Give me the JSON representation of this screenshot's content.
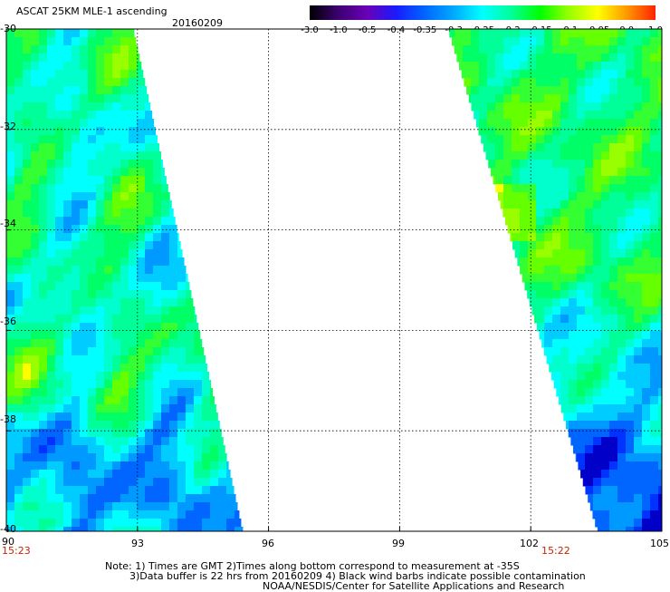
{
  "header": {
    "product": "ASCAT 25KM MLE-1 ascending",
    "date": "20160209"
  },
  "colorbar": {
    "labels": [
      "-3.0",
      "-1.0",
      "-0.5",
      "-0.4",
      "-0.35",
      "-0.3",
      "-0.25",
      "-0.2",
      "-0.15",
      "-0.1",
      "-0.05",
      "0.0",
      "1.0"
    ],
    "colors": [
      "#000000",
      "#3c0070",
      "#6a00b8",
      "#1a1aff",
      "#0066ff",
      "#00aaff",
      "#00ffff",
      "#00ff99",
      "#00ff00",
      "#99ff00",
      "#ffff00",
      "#ff9900",
      "#ff2200"
    ]
  },
  "axes": {
    "x_ticks": [
      "90",
      "93",
      "96",
      "99",
      "102",
      "105"
    ],
    "y_ticks": [
      "-30",
      "-32",
      "-34",
      "-36",
      "-38",
      "-40"
    ],
    "lon_range": [
      90,
      105
    ],
    "lat_range": [
      -30,
      -40
    ]
  },
  "pass_times": {
    "west": "15:23",
    "east": "15:22"
  },
  "notes": {
    "line1": "Note: 1) Times are GMT 2)Times along bottom correspond to measurement at -35S",
    "line2": "3)Data buffer is 22 hrs from 20160209 4) Black wind barbs indicate possible contamination",
    "line3": "NOAA/NESDIS/Center for Satellite Applications and Research"
  }
}
